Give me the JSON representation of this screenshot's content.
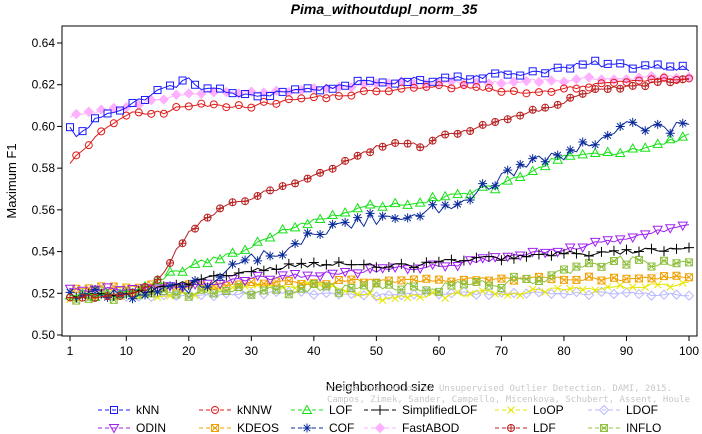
{
  "chart_data": {
    "type": "line",
    "title": "Pima_withoutdupl_norm_35",
    "xlabel": "Neighborhood size",
    "ylabel": "Maximum F1",
    "xlim": [
      1,
      100
    ],
    "ylim": [
      0.5,
      0.645
    ],
    "x_ticks": [
      1,
      10,
      20,
      30,
      40,
      50,
      60,
      70,
      80,
      90,
      100
    ],
    "y_ticks": [
      0.5,
      0.52,
      0.54,
      0.56,
      0.58,
      0.6,
      0.62,
      0.64
    ],
    "x_tick_labels": [
      "1",
      "10",
      "20",
      "30",
      "40",
      "50",
      "60",
      "70",
      "80",
      "90",
      "100"
    ],
    "y_tick_labels": [
      "0.50",
      "0.52",
      "0.54",
      "0.56",
      "0.58",
      "0.60",
      "0.62",
      "0.64"
    ],
    "grid": false,
    "legend_position": "bottom",
    "credit_lines": [
      "Campos, Zimek, Sander, Campello, Micenkova, Schubert, Assent, Houle",
      "On the Evaluation of Unsupervised Outlier Detection. DAMI, 2015."
    ],
    "series": [
      {
        "name": "kNN",
        "color": "#1a1aff",
        "marker": "square",
        "keypoints": [
          [
            1,
            0.599
          ],
          [
            2,
            0.596
          ],
          [
            3,
            0.597
          ],
          [
            5,
            0.603
          ],
          [
            7,
            0.607
          ],
          [
            10,
            0.609
          ],
          [
            13,
            0.614
          ],
          [
            16,
            0.618
          ],
          [
            18,
            0.62
          ],
          [
            20,
            0.622
          ],
          [
            22,
            0.619
          ],
          [
            25,
            0.617
          ],
          [
            30,
            0.614
          ],
          [
            35,
            0.617
          ],
          [
            40,
            0.618
          ],
          [
            45,
            0.62
          ],
          [
            50,
            0.621
          ],
          [
            55,
            0.622
          ],
          [
            60,
            0.623
          ],
          [
            65,
            0.624
          ],
          [
            70,
            0.625
          ],
          [
            75,
            0.626
          ],
          [
            80,
            0.628
          ],
          [
            85,
            0.63
          ],
          [
            90,
            0.629
          ],
          [
            95,
            0.629
          ],
          [
            100,
            0.628
          ]
        ]
      },
      {
        "name": "kNNW",
        "color": "#e01a1a",
        "marker": "circle",
        "keypoints": [
          [
            1,
            0.583
          ],
          [
            3,
            0.588
          ],
          [
            5,
            0.594
          ],
          [
            7,
            0.6
          ],
          [
            9,
            0.604
          ],
          [
            11,
            0.606
          ],
          [
            13,
            0.606
          ],
          [
            16,
            0.607
          ],
          [
            20,
            0.61
          ],
          [
            25,
            0.61
          ],
          [
            30,
            0.61
          ],
          [
            35,
            0.612
          ],
          [
            40,
            0.614
          ],
          [
            45,
            0.615
          ],
          [
            50,
            0.617
          ],
          [
            55,
            0.618
          ],
          [
            60,
            0.619
          ],
          [
            65,
            0.619
          ],
          [
            70,
            0.617
          ],
          [
            75,
            0.616
          ],
          [
            80,
            0.618
          ],
          [
            85,
            0.62
          ],
          [
            90,
            0.622
          ],
          [
            95,
            0.623
          ],
          [
            100,
            0.623
          ]
        ]
      },
      {
        "name": "LOF",
        "color": "#18e018",
        "marker": "triangle-up",
        "keypoints": [
          [
            1,
            0.519
          ],
          [
            8,
            0.52
          ],
          [
            12,
            0.521
          ],
          [
            15,
            0.525
          ],
          [
            17,
            0.529
          ],
          [
            20,
            0.532
          ],
          [
            22,
            0.535
          ],
          [
            25,
            0.537
          ],
          [
            28,
            0.54
          ],
          [
            30,
            0.543
          ],
          [
            33,
            0.547
          ],
          [
            36,
            0.551
          ],
          [
            40,
            0.555
          ],
          [
            45,
            0.559
          ],
          [
            50,
            0.562
          ],
          [
            55,
            0.563
          ],
          [
            60,
            0.565
          ],
          [
            65,
            0.568
          ],
          [
            70,
            0.572
          ],
          [
            75,
            0.578
          ],
          [
            78,
            0.584
          ],
          [
            80,
            0.586
          ],
          [
            85,
            0.587
          ],
          [
            90,
            0.588
          ],
          [
            95,
            0.591
          ],
          [
            100,
            0.595
          ]
        ]
      },
      {
        "name": "SimplifiedLOF",
        "color": "#000000",
        "marker": "plus",
        "keypoints": [
          [
            1,
            0.519
          ],
          [
            10,
            0.519
          ],
          [
            15,
            0.522
          ],
          [
            20,
            0.525
          ],
          [
            25,
            0.528
          ],
          [
            30,
            0.531
          ],
          [
            35,
            0.533
          ],
          [
            40,
            0.534
          ],
          [
            45,
            0.534
          ],
          [
            50,
            0.533
          ],
          [
            55,
            0.533
          ],
          [
            60,
            0.535
          ],
          [
            65,
            0.536
          ],
          [
            70,
            0.537
          ],
          [
            75,
            0.538
          ],
          [
            80,
            0.539
          ],
          [
            85,
            0.539
          ],
          [
            90,
            0.54
          ],
          [
            95,
            0.541
          ],
          [
            100,
            0.542
          ]
        ]
      },
      {
        "name": "LoOP",
        "color": "#e6e600",
        "marker": "x",
        "keypoints": [
          [
            1,
            0.518
          ],
          [
            10,
            0.519
          ],
          [
            20,
            0.52
          ],
          [
            30,
            0.523
          ],
          [
            40,
            0.524
          ],
          [
            45,
            0.521
          ],
          [
            50,
            0.518
          ],
          [
            60,
            0.519
          ],
          [
            70,
            0.52
          ],
          [
            80,
            0.522
          ],
          [
            90,
            0.523
          ],
          [
            100,
            0.524
          ]
        ]
      },
      {
        "name": "LDOF",
        "color": "#b8b8ff",
        "marker": "diamond",
        "keypoints": [
          [
            1,
            0.519
          ],
          [
            10,
            0.519
          ],
          [
            20,
            0.519
          ],
          [
            30,
            0.52
          ],
          [
            40,
            0.52
          ],
          [
            50,
            0.519
          ],
          [
            60,
            0.52
          ],
          [
            70,
            0.52
          ],
          [
            80,
            0.52
          ],
          [
            90,
            0.52
          ],
          [
            100,
            0.519
          ]
        ]
      },
      {
        "name": "ODIN",
        "color": "#a020f0",
        "marker": "triangle-down",
        "keypoints": [
          [
            1,
            0.521
          ],
          [
            10,
            0.522
          ],
          [
            20,
            0.524
          ],
          [
            30,
            0.527
          ],
          [
            40,
            0.529
          ],
          [
            50,
            0.531
          ],
          [
            60,
            0.533
          ],
          [
            70,
            0.537
          ],
          [
            80,
            0.541
          ],
          [
            90,
            0.547
          ],
          [
            95,
            0.55
          ],
          [
            100,
            0.552
          ]
        ]
      },
      {
        "name": "KDEOS",
        "color": "#f0a000",
        "marker": "boxtimes",
        "keypoints": [
          [
            1,
            0.522
          ],
          [
            10,
            0.523
          ],
          [
            20,
            0.524
          ],
          [
            30,
            0.525
          ],
          [
            40,
            0.525
          ],
          [
            50,
            0.526
          ],
          [
            60,
            0.526
          ],
          [
            70,
            0.527
          ],
          [
            80,
            0.527
          ],
          [
            90,
            0.527
          ],
          [
            100,
            0.528
          ]
        ]
      },
      {
        "name": "COF",
        "color": "#0a2a9a",
        "marker": "asterisk",
        "keypoints": [
          [
            1,
            0.519
          ],
          [
            10,
            0.52
          ],
          [
            20,
            0.523
          ],
          [
            25,
            0.528
          ],
          [
            30,
            0.537
          ],
          [
            35,
            0.54
          ],
          [
            40,
            0.548
          ],
          [
            45,
            0.553
          ],
          [
            50,
            0.556
          ],
          [
            55,
            0.557
          ],
          [
            60,
            0.561
          ],
          [
            65,
            0.567
          ],
          [
            70,
            0.575
          ],
          [
            75,
            0.582
          ],
          [
            80,
            0.586
          ],
          [
            85,
            0.592
          ],
          [
            90,
            0.6
          ],
          [
            95,
            0.6
          ],
          [
            100,
            0.599
          ]
        ]
      },
      {
        "name": "FastABOD",
        "color": "#ffb0ff",
        "marker": "diamond-filled",
        "keypoints": [
          [
            1,
            0.605
          ],
          [
            5,
            0.607
          ],
          [
            10,
            0.609
          ],
          [
            15,
            0.613
          ],
          [
            20,
            0.616
          ],
          [
            25,
            0.617
          ],
          [
            30,
            0.616
          ],
          [
            35,
            0.617
          ],
          [
            40,
            0.618
          ],
          [
            45,
            0.619
          ],
          [
            50,
            0.62
          ],
          [
            55,
            0.621
          ],
          [
            60,
            0.621
          ],
          [
            65,
            0.621
          ],
          [
            70,
            0.621
          ],
          [
            75,
            0.622
          ],
          [
            80,
            0.622
          ],
          [
            85,
            0.623
          ],
          [
            90,
            0.623
          ],
          [
            95,
            0.624
          ],
          [
            100,
            0.624
          ]
        ]
      },
      {
        "name": "LDF",
        "color": "#b82020",
        "marker": "circle-plus",
        "keypoints": [
          [
            1,
            0.518
          ],
          [
            10,
            0.519
          ],
          [
            14,
            0.523
          ],
          [
            16,
            0.53
          ],
          [
            18,
            0.541
          ],
          [
            20,
            0.549
          ],
          [
            22,
            0.554
          ],
          [
            25,
            0.56
          ],
          [
            28,
            0.564
          ],
          [
            30,
            0.566
          ],
          [
            35,
            0.571
          ],
          [
            40,
            0.576
          ],
          [
            45,
            0.583
          ],
          [
            50,
            0.59
          ],
          [
            55,
            0.592
          ],
          [
            58,
            0.59
          ],
          [
            60,
            0.595
          ],
          [
            65,
            0.598
          ],
          [
            70,
            0.603
          ],
          [
            75,
            0.607
          ],
          [
            80,
            0.612
          ],
          [
            85,
            0.617
          ],
          [
            90,
            0.619
          ],
          [
            95,
            0.621
          ],
          [
            100,
            0.622
          ]
        ]
      },
      {
        "name": "INFLO",
        "color": "#90c040",
        "marker": "hourglass",
        "keypoints": [
          [
            1,
            0.519
          ],
          [
            10,
            0.519
          ],
          [
            20,
            0.52
          ],
          [
            30,
            0.521
          ],
          [
            40,
            0.522
          ],
          [
            50,
            0.523
          ],
          [
            60,
            0.523
          ],
          [
            70,
            0.525
          ],
          [
            80,
            0.529
          ],
          [
            85,
            0.533
          ],
          [
            90,
            0.536
          ],
          [
            95,
            0.535
          ],
          [
            100,
            0.536
          ]
        ]
      }
    ]
  }
}
